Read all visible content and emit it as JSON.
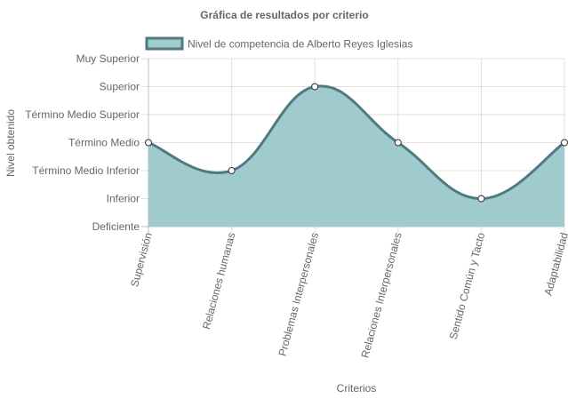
{
  "chart_data": {
    "type": "line",
    "title": "Gráfica de resultados por criterio",
    "xlabel": "Criterios",
    "ylabel": "Nivel obtenido",
    "categories": [
      "Supervisión",
      "Relaciones humanas",
      "Problemas Interpersonales",
      "Relaciones Interpersonales",
      "Sentido Común y Tacto",
      "Adaptabilidad"
    ],
    "y_levels": [
      "Deficiente",
      "Inferior",
      "Término Medio Inferior",
      "Término Medio",
      "Término Medio Superior",
      "Superior",
      "Muy Superior"
    ],
    "series": [
      {
        "name": "Nivel de competencia de Alberto Reyes Iglesias",
        "values": [
          3,
          2,
          5,
          3,
          1,
          3
        ],
        "fill_color": "#9fcbcf",
        "line_color": "#4e7a80"
      }
    ],
    "ylim": [
      0,
      6
    ],
    "grid": true,
    "legend_position": "top",
    "fill": true,
    "smooth": true
  }
}
